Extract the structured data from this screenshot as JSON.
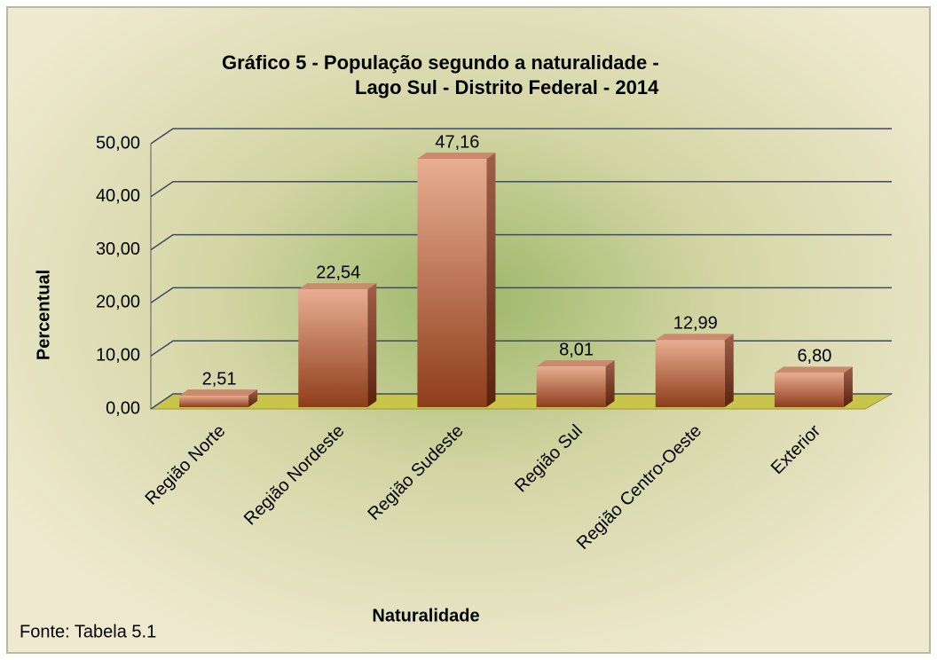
{
  "chart_data": {
    "type": "bar3d",
    "title": [
      "Gráfico 5 - População segundo a naturalidade -",
      "Lago Sul - Distrito Federal - 2014"
    ],
    "y_label": "Percentual",
    "x_label": "Naturalidade",
    "source": "Fonte: Tabela 5.1",
    "categories": [
      "Região Norte",
      "Região Nordeste",
      "Região Sudeste",
      "Região Sul",
      "Região Centro-Oeste",
      "Exterior"
    ],
    "values": [
      2.51,
      22.54,
      47.16,
      8.01,
      12.99,
      6.8
    ],
    "value_labels": [
      "2,51",
      "22,54",
      "47,16",
      "8,01",
      "12,99",
      "6,80"
    ],
    "color": "#b5603a",
    "ylim": [
      0,
      50
    ],
    "yticks": [
      {
        "value": 0,
        "label": "0,00"
      },
      {
        "value": 10,
        "label": "10,00"
      },
      {
        "value": 20,
        "label": "20,00"
      },
      {
        "value": 30,
        "label": "30,00"
      },
      {
        "value": 40,
        "label": "40,00"
      },
      {
        "value": 50,
        "label": "50,00"
      }
    ],
    "grid": true
  }
}
